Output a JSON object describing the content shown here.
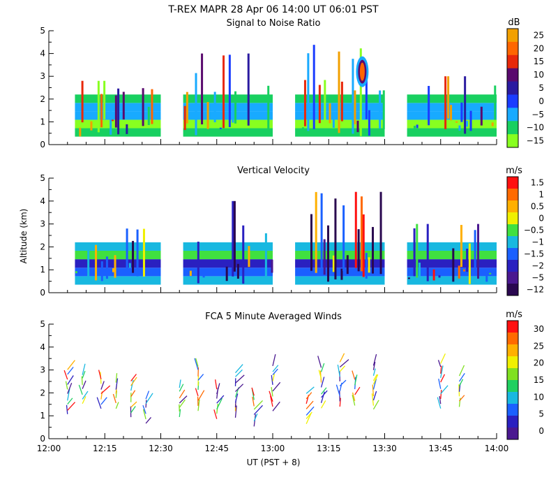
{
  "figure": {
    "title": "T-REX  MAPR 28 Apr 06  14:00 UT  06:01  PST",
    "xlabel": "UT  (PST + 8)",
    "ylabel": "Altitude  (km)"
  },
  "chart_data": [
    {
      "type": "heatmap",
      "title": "Signal to Noise Ratio",
      "units": "dB",
      "ylim": [
        0,
        5
      ],
      "yticks": [
        "0",
        "1",
        "2",
        "3",
        "4",
        "5"
      ],
      "xlim": [
        "12:00",
        "14:00"
      ],
      "colorbar": {
        "labels": [
          "25",
          "20",
          "15",
          "10",
          "5",
          "0",
          "−5",
          "−10",
          "−15"
        ],
        "colors": [
          "#f2a000",
          "#ff6600",
          "#e8280a",
          "#5a0a6e",
          "#2a1aa0",
          "#1a3cff",
          "#18aaff",
          "#18d060",
          "#88ff20"
        ]
      },
      "segments": [
        {
          "start": "12:07",
          "end": "12:30",
          "top_km": 2.8
        },
        {
          "start": "12:36",
          "end": "13:00",
          "top_km": 4.0
        },
        {
          "start": "13:06",
          "end": "13:30",
          "top_km": 4.5
        },
        {
          "start": "13:36",
          "end": "14:00",
          "top_km": 3.0
        }
      ]
    },
    {
      "type": "heatmap",
      "title": "Vertical Velocity",
      "units": "m/s",
      "ylim": [
        0,
        5
      ],
      "yticks": [
        "0",
        "1",
        "2",
        "3",
        "4",
        "5"
      ],
      "xlim": [
        "12:00",
        "14:00"
      ],
      "colorbar": {
        "labels": [
          "1.5",
          "1",
          "0.5",
          "0",
          "−0.5",
          "−1",
          "−1.5",
          "−2",
          "−5",
          "−12"
        ],
        "colors": [
          "#ff1010",
          "#ff6a00",
          "#ffb000",
          "#f0f000",
          "#40e040",
          "#18b8e0",
          "#1a60ff",
          "#2a20c0",
          "#4a1890",
          "#2a0850"
        ]
      },
      "segments": [
        {
          "start": "12:07",
          "end": "12:30",
          "top_km": 2.8
        },
        {
          "start": "12:36",
          "end": "13:00",
          "top_km": 4.0
        },
        {
          "start": "13:06",
          "end": "13:30",
          "top_km": 4.4
        },
        {
          "start": "13:36",
          "end": "14:00",
          "top_km": 3.0
        }
      ]
    },
    {
      "type": "scatter",
      "title": "FCA 5 Minute Averaged Winds",
      "units": "m/s",
      "ylim": [
        0,
        5
      ],
      "yticks": [
        "0",
        "1",
        "2",
        "3",
        "4",
        "5"
      ],
      "xlim": [
        "12:00",
        "14:00"
      ],
      "xticks": [
        "12:00",
        "12:15",
        "12:30",
        "12:45",
        "13:00",
        "13:15",
        "13:30",
        "13:45",
        "14:00"
      ],
      "colorbar": {
        "labels": [
          "30",
          "25",
          "20",
          "15",
          "10",
          "5",
          "0"
        ],
        "colors": [
          "#ff1010",
          "#ff6a00",
          "#ffb000",
          "#f0f000",
          "#80e020",
          "#20d060",
          "#18b8e0",
          "#1a60ff",
          "#2a20c0",
          "#4a1890"
        ]
      },
      "profile_times": [
        "12:05",
        "12:09",
        "12:14",
        "12:18",
        "12:22",
        "12:26",
        "12:35",
        "12:40",
        "12:45",
        "12:50",
        "12:55",
        "13:00",
        "13:09",
        "13:13",
        "13:18",
        "13:22",
        "13:27",
        "13:45",
        "13:50"
      ]
    }
  ]
}
